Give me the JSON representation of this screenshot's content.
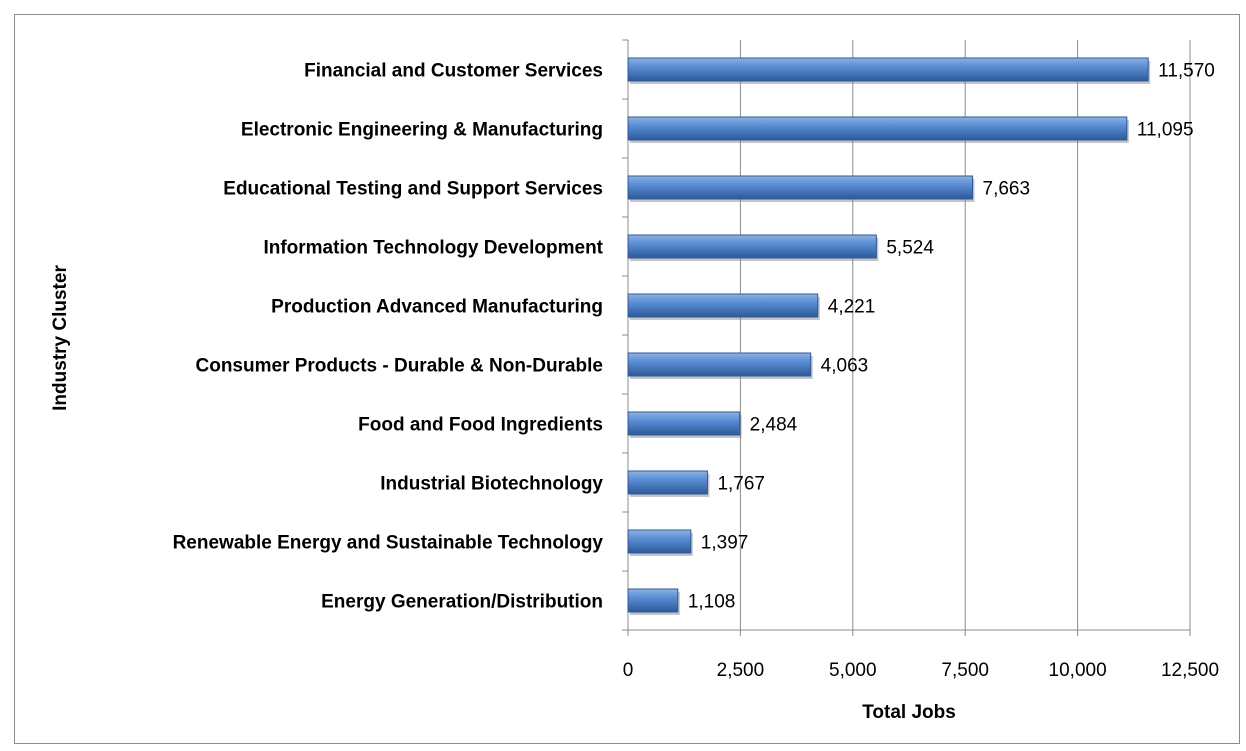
{
  "chart_data": {
    "type": "bar",
    "orientation": "horizontal",
    "categories": [
      "Financial and Customer Services",
      "Electronic Engineering & Manufacturing",
      "Educational Testing and Support Services",
      "Information Technology Development",
      "Production Advanced Manufacturing",
      "Consumer Products - Durable & Non-Durable",
      "Food and Food Ingredients",
      "Industrial Biotechnology",
      "Renewable Energy and Sustainable Technology",
      "Energy Generation/Distribution"
    ],
    "values": [
      11570,
      11095,
      7663,
      5524,
      4221,
      4063,
      2484,
      1767,
      1397,
      1108
    ],
    "value_labels": [
      "11,570",
      "11,095",
      "7,663",
      "5,524",
      "4,221",
      "4,063",
      "2,484",
      "1,767",
      "1,397",
      "1,108"
    ],
    "xlabel": "Total Jobs",
    "ylabel": "Industry Cluster",
    "xlim": [
      0,
      12500
    ],
    "x_ticks": [
      0,
      2500,
      5000,
      7500,
      10000,
      12500
    ],
    "x_tick_labels": [
      "0",
      "2,500",
      "5,000",
      "7,500",
      "10,000",
      "12,500"
    ],
    "grid": "vertical",
    "legend": "none",
    "bar_color": "#4f81bd"
  }
}
